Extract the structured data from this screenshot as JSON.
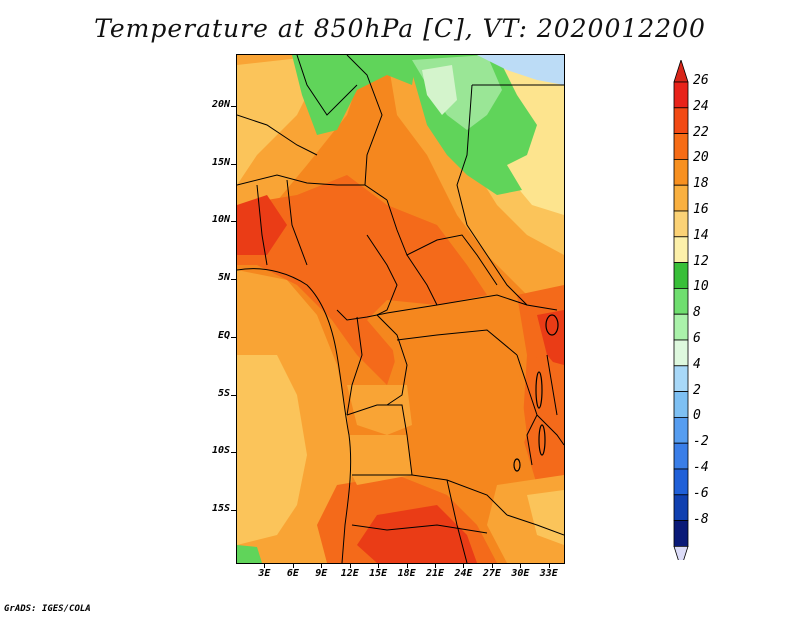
{
  "title": "Temperature at 850hPa [C], VT: 2020012200",
  "credit": "GrADS: IGES/COLA",
  "axes": {
    "lat_labels": [
      "20N",
      "15N",
      "10N",
      "5N",
      "EQ",
      "5S",
      "10S",
      "15S"
    ],
    "lon_labels": [
      "3E",
      "6E",
      "9E",
      "12E",
      "15E",
      "18E",
      "21E",
      "24E",
      "27E",
      "30E",
      "33E"
    ],
    "lat_range_deg": [
      -19.5,
      24.5
    ],
    "lon_range_deg": [
      0,
      34.5
    ]
  },
  "colorbar": {
    "units": "C",
    "levels": [
      "26",
      "24",
      "22",
      "20",
      "18",
      "16",
      "14",
      "12",
      "10",
      "8",
      "6",
      "4",
      "2",
      "0",
      "-2",
      "-4",
      "-6",
      "-8"
    ],
    "colors": [
      "#e8231a",
      "#f24a14",
      "#f66c16",
      "#f79020",
      "#f9b040",
      "#fbd276",
      "#fcf0aa",
      "#38bf38",
      "#6fde6f",
      "#aaf2aa",
      "#def8de",
      "#a8d8f8",
      "#7ec0f3",
      "#569df0",
      "#3a7ee8",
      "#2060d8",
      "#1040b0",
      "#0a1a78"
    ],
    "top_arrow_color": "#d8261a",
    "bottom_arrow_color": "#dcdcf8"
  },
  "field_colors": {
    "very_hot": "#ea3c16",
    "hot": "#f46a1a",
    "warm": "#f5871e",
    "mild": "#f9a435",
    "cool": "#fbc45a",
    "cooler": "#fde48e",
    "cold_green": "#60d45a",
    "colder_green": "#9ae696",
    "pale_green": "#d4f4cc",
    "light_blue": "#bcdcf6"
  }
}
